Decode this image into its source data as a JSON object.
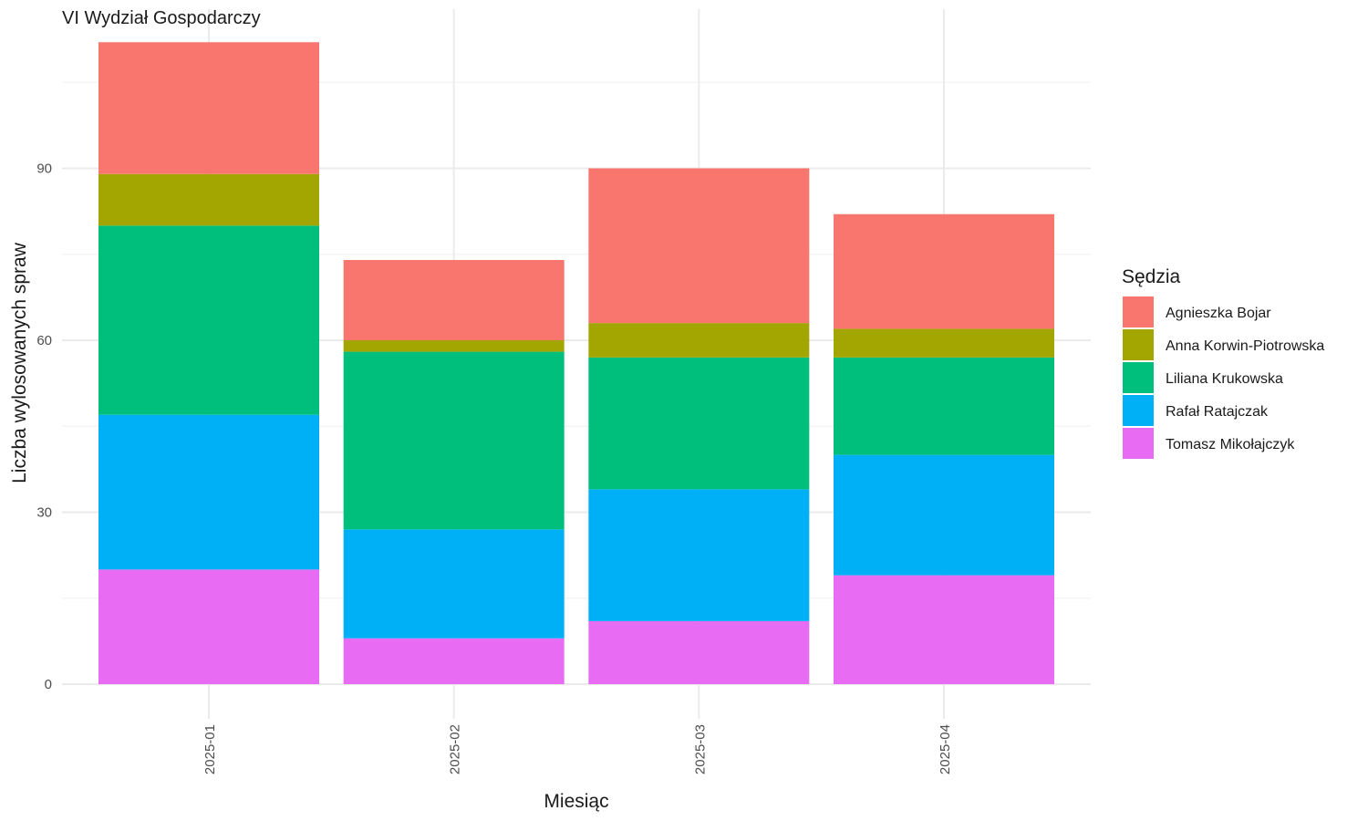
{
  "chart_data": {
    "type": "bar",
    "stacked": true,
    "title": "VI Wydział Gospodarczy",
    "xlabel": "Miesiąc",
    "ylabel": "Liczba wylosowanych spraw",
    "categories": [
      "2025-01",
      "2025-02",
      "2025-03",
      "2025-04"
    ],
    "ylim": [
      0,
      115
    ],
    "yticks": [
      0,
      30,
      60,
      90
    ],
    "grid": true,
    "legend": {
      "title": "Sędzia",
      "position": "right"
    },
    "series": [
      {
        "name": "Tomasz Mikołajczyk",
        "color": "#E76BF3",
        "values": [
          20,
          8,
          11,
          19
        ]
      },
      {
        "name": "Rafał Ratajczak",
        "color": "#00B0F6",
        "values": [
          27,
          19,
          23,
          21
        ]
      },
      {
        "name": "Liliana Krukowska",
        "color": "#00BF7D",
        "values": [
          33,
          31,
          23,
          17
        ]
      },
      {
        "name": "Anna Korwin-Piotrowska",
        "color": "#A3A500",
        "values": [
          9,
          2,
          6,
          5
        ]
      },
      {
        "name": "Agnieszka Bojar",
        "color": "#F8766D",
        "values": [
          23,
          14,
          27,
          20
        ]
      }
    ],
    "legend_order": [
      "Agnieszka Bojar",
      "Anna Korwin-Piotrowska",
      "Liliana Krukowska",
      "Rafał Ratajczak",
      "Tomasz Mikołajczyk"
    ]
  }
}
